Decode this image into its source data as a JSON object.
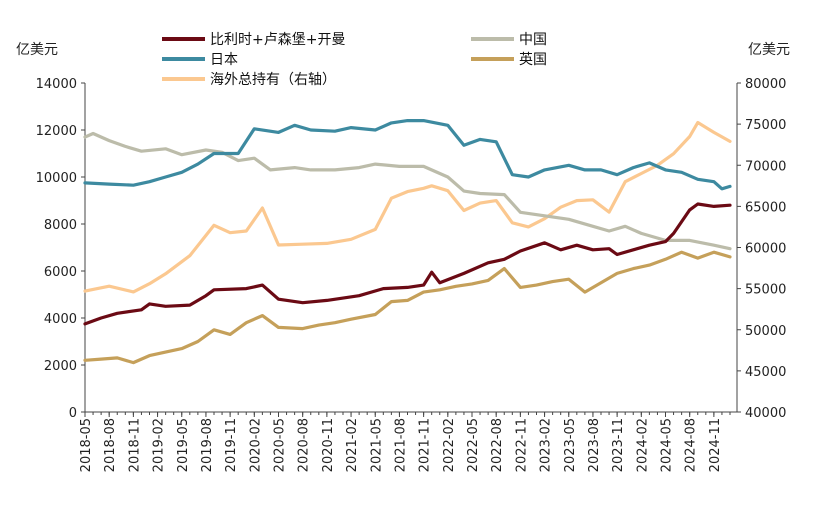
{
  "chart_data": {
    "type": "line",
    "left_axis": {
      "unit": "亿美元",
      "ylim": [
        0,
        14000
      ],
      "ticks": [
        "0",
        "2000",
        "4000",
        "6000",
        "8000",
        "10000",
        "12000",
        "14000"
      ]
    },
    "right_axis": {
      "unit": "亿美元",
      "ylim": [
        40000,
        80000
      ],
      "ticks": [
        "40000",
        "45000",
        "50000",
        "55000",
        "60000",
        "65000",
        "70000",
        "75000",
        "80000"
      ]
    },
    "x_ticks": [
      "2018-05",
      "2018-08",
      "2018-11",
      "2019-02",
      "2019-05",
      "2019-08",
      "2019-11",
      "2020-02",
      "2020-05",
      "2020-08",
      "2020-11",
      "2021-02",
      "2021-05",
      "2021-08",
      "2021-11",
      "2022-02",
      "2022-05",
      "2022-08",
      "2022-11",
      "2023-02",
      "2023-05",
      "2023-08",
      "2023-11",
      "2024-02",
      "2024-05",
      "2024-08",
      "2024-11"
    ],
    "x_start": "2018-05",
    "x_end": "2025-01",
    "legend_position": "top",
    "series": [
      {
        "name": "比利时+卢森堡+开曼",
        "color": "#6b0a14",
        "axis": "left",
        "anchors": [
          [
            "2018-05",
            3750
          ],
          [
            "2018-07",
            4000
          ],
          [
            "2018-09",
            4200
          ],
          [
            "2018-12",
            4350
          ],
          [
            "2019-01",
            4600
          ],
          [
            "2019-03",
            4500
          ],
          [
            "2019-06",
            4550
          ],
          [
            "2019-08",
            4950
          ],
          [
            "2019-09",
            5200
          ],
          [
            "2020-01",
            5250
          ],
          [
            "2020-03",
            5400
          ],
          [
            "2020-05",
            4800
          ],
          [
            "2020-08",
            4650
          ],
          [
            "2020-11",
            4750
          ],
          [
            "2021-03",
            4950
          ],
          [
            "2021-06",
            5250
          ],
          [
            "2021-09",
            5300
          ],
          [
            "2021-11",
            5400
          ],
          [
            "2021-12",
            5950
          ],
          [
            "2022-01",
            5500
          ],
          [
            "2022-04",
            5900
          ],
          [
            "2022-07",
            6350
          ],
          [
            "2022-09",
            6500
          ],
          [
            "2022-11",
            6850
          ],
          [
            "2023-02",
            7200
          ],
          [
            "2023-04",
            6900
          ],
          [
            "2023-06",
            7100
          ],
          [
            "2023-08",
            6900
          ],
          [
            "2023-10",
            6950
          ],
          [
            "2023-11",
            6700
          ],
          [
            "2024-01",
            6900
          ],
          [
            "2024-03",
            7100
          ],
          [
            "2024-05",
            7250
          ],
          [
            "2024-06",
            7600
          ],
          [
            "2024-08",
            8600
          ],
          [
            "2024-09",
            8850
          ],
          [
            "2024-11",
            8750
          ],
          [
            "2025-01",
            8800
          ]
        ]
      },
      {
        "name": "日本",
        "color": "#3d8aa0",
        "axis": "left",
        "anchors": [
          [
            "2018-05",
            9750
          ],
          [
            "2018-08",
            9700
          ],
          [
            "2018-11",
            9650
          ],
          [
            "2019-01",
            9800
          ],
          [
            "2019-03",
            10000
          ],
          [
            "2019-05",
            10200
          ],
          [
            "2019-07",
            10550
          ],
          [
            "2019-09",
            11000
          ],
          [
            "2019-12",
            11000
          ],
          [
            "2020-02",
            12050
          ],
          [
            "2020-05",
            11900
          ],
          [
            "2020-07",
            12200
          ],
          [
            "2020-09",
            12000
          ],
          [
            "2020-12",
            11950
          ],
          [
            "2021-02",
            12100
          ],
          [
            "2021-05",
            12000
          ],
          [
            "2021-07",
            12300
          ],
          [
            "2021-09",
            12400
          ],
          [
            "2021-11",
            12400
          ],
          [
            "2022-02",
            12200
          ],
          [
            "2022-04",
            11350
          ],
          [
            "2022-06",
            11600
          ],
          [
            "2022-08",
            11500
          ],
          [
            "2022-10",
            10100
          ],
          [
            "2022-12",
            10000
          ],
          [
            "2023-02",
            10300
          ],
          [
            "2023-05",
            10500
          ],
          [
            "2023-07",
            10300
          ],
          [
            "2023-09",
            10300
          ],
          [
            "2023-11",
            10100
          ],
          [
            "2024-01",
            10400
          ],
          [
            "2024-03",
            10600
          ],
          [
            "2024-05",
            10300
          ],
          [
            "2024-07",
            10200
          ],
          [
            "2024-09",
            9900
          ],
          [
            "2024-11",
            9800
          ],
          [
            "2024-12",
            9500
          ],
          [
            "2025-01",
            9600
          ]
        ]
      },
      {
        "name": "中国",
        "color": "#bcbcaa",
        "axis": "left",
        "anchors": [
          [
            "2018-05",
            11700
          ],
          [
            "2018-06",
            11850
          ],
          [
            "2018-08",
            11550
          ],
          [
            "2018-10",
            11300
          ],
          [
            "2018-12",
            11100
          ],
          [
            "2019-03",
            11200
          ],
          [
            "2019-05",
            10950
          ],
          [
            "2019-08",
            11150
          ],
          [
            "2019-10",
            11050
          ],
          [
            "2019-12",
            10700
          ],
          [
            "2020-02",
            10800
          ],
          [
            "2020-04",
            10300
          ],
          [
            "2020-07",
            10400
          ],
          [
            "2020-09",
            10300
          ],
          [
            "2020-12",
            10300
          ],
          [
            "2021-03",
            10400
          ],
          [
            "2021-05",
            10550
          ],
          [
            "2021-08",
            10450
          ],
          [
            "2021-11",
            10450
          ],
          [
            "2022-02",
            10000
          ],
          [
            "2022-04",
            9400
          ],
          [
            "2022-06",
            9300
          ],
          [
            "2022-09",
            9250
          ],
          [
            "2022-11",
            8500
          ],
          [
            "2023-02",
            8350
          ],
          [
            "2023-05",
            8200
          ],
          [
            "2023-08",
            7900
          ],
          [
            "2023-10",
            7700
          ],
          [
            "2023-12",
            7900
          ],
          [
            "2024-02",
            7600
          ],
          [
            "2024-05",
            7300
          ],
          [
            "2024-08",
            7300
          ],
          [
            "2024-11",
            7100
          ],
          [
            "2025-01",
            6950
          ]
        ]
      },
      {
        "name": "英国",
        "color": "#c5a05a",
        "axis": "left",
        "anchors": [
          [
            "2018-05",
            2200
          ],
          [
            "2018-07",
            2250
          ],
          [
            "2018-09",
            2300
          ],
          [
            "2018-11",
            2100
          ],
          [
            "2019-01",
            2400
          ],
          [
            "2019-03",
            2550
          ],
          [
            "2019-05",
            2700
          ],
          [
            "2019-07",
            3000
          ],
          [
            "2019-09",
            3500
          ],
          [
            "2019-11",
            3300
          ],
          [
            "2020-01",
            3800
          ],
          [
            "2020-03",
            4100
          ],
          [
            "2020-05",
            3600
          ],
          [
            "2020-08",
            3550
          ],
          [
            "2020-10",
            3700
          ],
          [
            "2020-12",
            3800
          ],
          [
            "2021-02",
            3950
          ],
          [
            "2021-05",
            4150
          ],
          [
            "2021-07",
            4700
          ],
          [
            "2021-09",
            4750
          ],
          [
            "2021-11",
            5100
          ],
          [
            "2022-01",
            5200
          ],
          [
            "2022-03",
            5350
          ],
          [
            "2022-05",
            5450
          ],
          [
            "2022-07",
            5600
          ],
          [
            "2022-09",
            6100
          ],
          [
            "2022-11",
            5300
          ],
          [
            "2023-01",
            5400
          ],
          [
            "2023-03",
            5550
          ],
          [
            "2023-05",
            5650
          ],
          [
            "2023-07",
            5100
          ],
          [
            "2023-09",
            5500
          ],
          [
            "2023-11",
            5900
          ],
          [
            "2024-01",
            6100
          ],
          [
            "2024-03",
            6250
          ],
          [
            "2024-05",
            6500
          ],
          [
            "2024-07",
            6800
          ],
          [
            "2024-09",
            6550
          ],
          [
            "2024-11",
            6800
          ],
          [
            "2025-01",
            6600
          ]
        ]
      },
      {
        "name": "海外总持有（右轴）",
        "color": "#fbc890",
        "axis": "right",
        "anchors": [
          [
            "2018-05",
            54700
          ],
          [
            "2018-08",
            55300
          ],
          [
            "2018-11",
            54600
          ],
          [
            "2019-01",
            55600
          ],
          [
            "2019-03",
            56800
          ],
          [
            "2019-06",
            59000
          ],
          [
            "2019-09",
            62700
          ],
          [
            "2019-11",
            61800
          ],
          [
            "2020-01",
            62000
          ],
          [
            "2020-03",
            64800
          ],
          [
            "2020-05",
            60300
          ],
          [
            "2020-08",
            60400
          ],
          [
            "2020-11",
            60500
          ],
          [
            "2021-02",
            61000
          ],
          [
            "2021-05",
            62200
          ],
          [
            "2021-07",
            66000
          ],
          [
            "2021-09",
            66800
          ],
          [
            "2021-11",
            67200
          ],
          [
            "2021-12",
            67500
          ],
          [
            "2022-02",
            66900
          ],
          [
            "2022-04",
            64500
          ],
          [
            "2022-06",
            65400
          ],
          [
            "2022-08",
            65700
          ],
          [
            "2022-10",
            63000
          ],
          [
            "2022-12",
            62500
          ],
          [
            "2023-02",
            63500
          ],
          [
            "2023-04",
            64900
          ],
          [
            "2023-06",
            65700
          ],
          [
            "2023-08",
            65800
          ],
          [
            "2023-10",
            64300
          ],
          [
            "2023-12",
            68000
          ],
          [
            "2024-02",
            69000
          ],
          [
            "2024-04",
            70000
          ],
          [
            "2024-06",
            71400
          ],
          [
            "2024-08",
            73500
          ],
          [
            "2024-09",
            75200
          ],
          [
            "2024-11",
            74000
          ],
          [
            "2025-01",
            72900
          ]
        ]
      }
    ]
  }
}
